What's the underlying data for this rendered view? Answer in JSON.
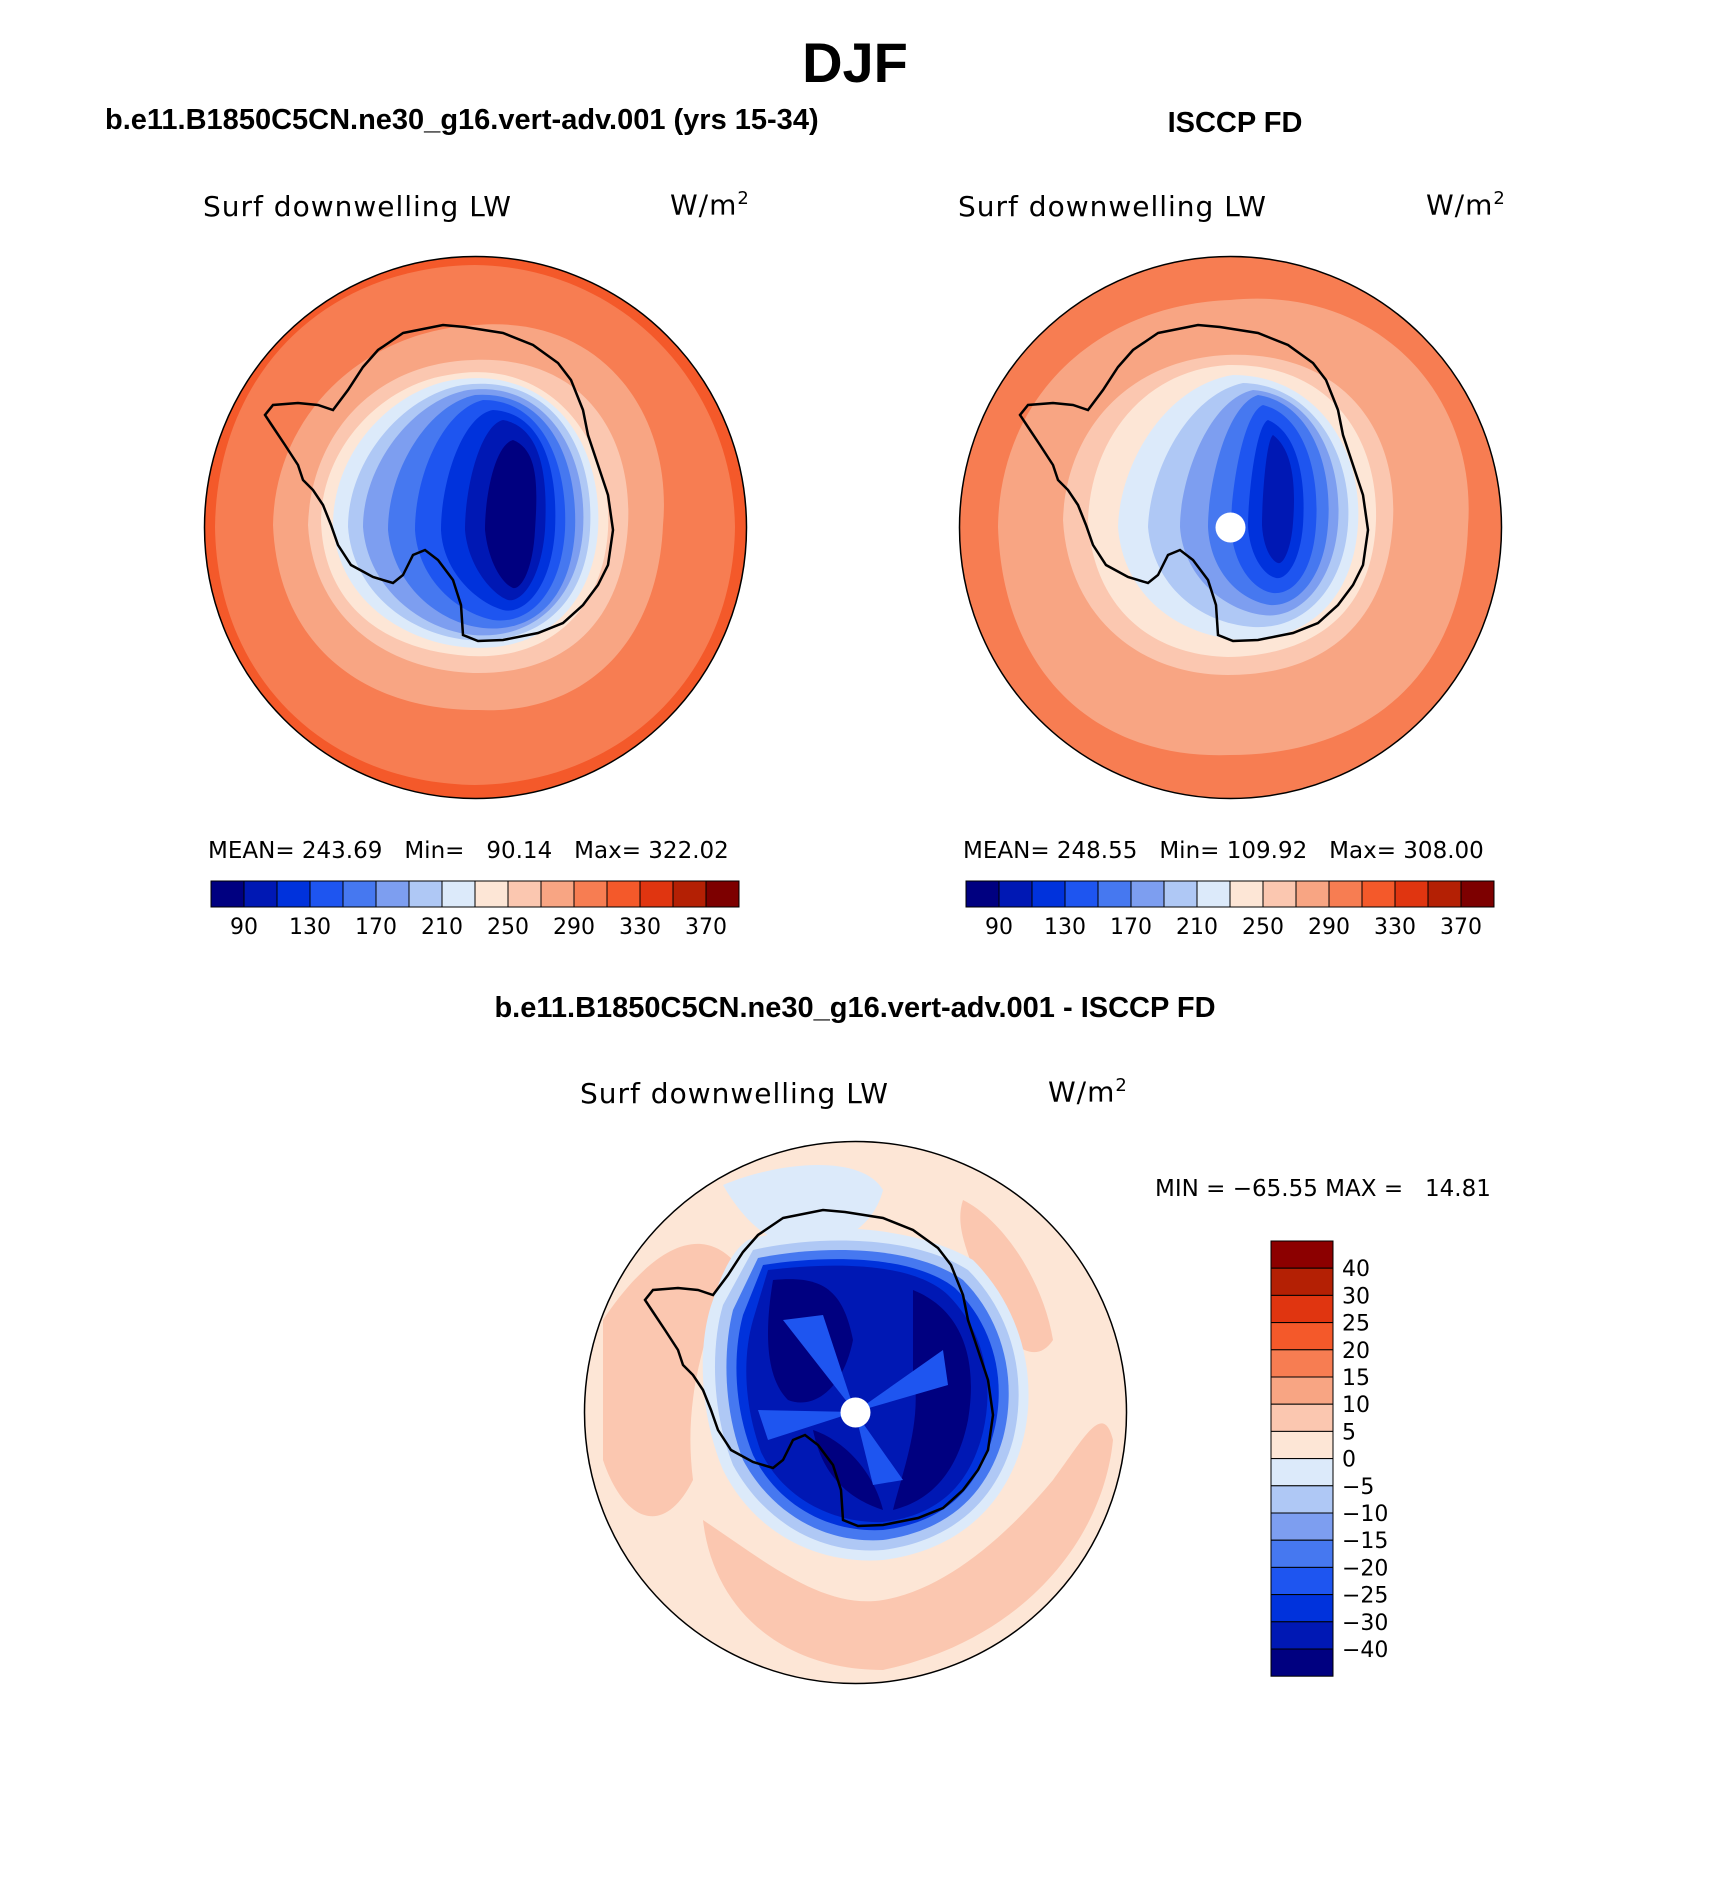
{
  "season": "DJF",
  "panels": [
    {
      "title": "b.e11.B1850C5CN.ne30_g16.vert-adv.001 (yrs 15-34)",
      "variable": "Surf downwelling LW",
      "units_base": "W/m",
      "units_exp": "2",
      "mean_label": "MEAN=",
      "mean": "243.69",
      "min_label": "Min=",
      "min": "90.14",
      "max_label": "Max=",
      "max": "322.02",
      "has_pole_hole": false
    },
    {
      "title": "ISCCP FD",
      "variable": "Surf downwelling LW",
      "units_base": "W/m",
      "units_exp": "2",
      "mean_label": "MEAN=",
      "mean": "248.55",
      "min_label": "Min=",
      "min": "109.92",
      "max_label": "Max=",
      "max": "308.00",
      "has_pole_hole": true
    }
  ],
  "diff_panel": {
    "title": "b.e11.B1850C5CN.ne30_g16.vert-adv.001 - ISCCP FD",
    "variable": "Surf downwelling LW",
    "units_base": "W/m",
    "units_exp": "2",
    "min_label": "MIN =",
    "min": "−65.55",
    "max_label": "MAX =",
    "max": "14.81",
    "has_pole_hole": true
  },
  "abs_colorbar": {
    "colors": [
      "#000080",
      "#0018b4",
      "#0032dc",
      "#1e55f0",
      "#4678f0",
      "#7d9ef0",
      "#afc8f5",
      "#dceafa",
      "#fde6d6",
      "#fbc7b0",
      "#f8a583",
      "#f77d52",
      "#f4592a",
      "#e03510",
      "#b42004",
      "#7d0000"
    ],
    "labels": [
      "90",
      "130",
      "170",
      "210",
      "250",
      "290",
      "330",
      "370"
    ]
  },
  "diff_colorbar": {
    "colors_top_to_bottom": [
      "#8c0000",
      "#b42004",
      "#e03510",
      "#f4592a",
      "#f77d52",
      "#f8a583",
      "#fbc7b0",
      "#fde6d6",
      "#dceafa",
      "#afc8f5",
      "#7d9ef0",
      "#4678f0",
      "#1e55f0",
      "#0032dc",
      "#0018b4",
      "#000080"
    ],
    "labels_top_to_bottom": [
      "40",
      "30",
      "25",
      "20",
      "15",
      "10",
      "5",
      "0",
      "−5",
      "−10",
      "−15",
      "−20",
      "−25",
      "−30",
      "−40"
    ]
  }
}
